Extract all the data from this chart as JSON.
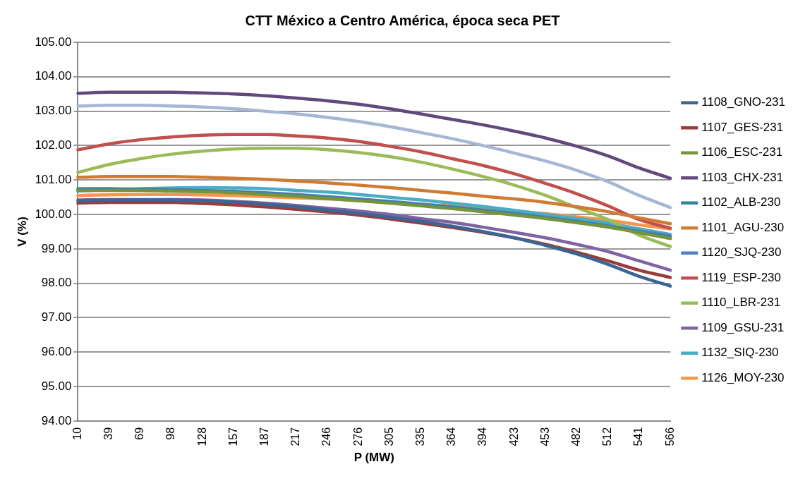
{
  "chart_data": {
    "type": "line",
    "title": "CTT México a Centro América, época seca PET",
    "xlabel": "P (MW)",
    "ylabel": "V (%)",
    "categories": [
      "10",
      "39",
      "69",
      "98",
      "128",
      "157",
      "187",
      "217",
      "246",
      "276",
      "305",
      "335",
      "364",
      "394",
      "423",
      "453",
      "482",
      "512",
      "541",
      "566"
    ],
    "ylim": [
      94,
      105
    ],
    "yticks": [
      {
        "value": 94,
        "label": "94.00"
      },
      {
        "value": 95,
        "label": "95.00"
      },
      {
        "value": 96,
        "label": "96.00"
      },
      {
        "value": 97,
        "label": "97.00"
      },
      {
        "value": 98,
        "label": "98.00"
      },
      {
        "value": 99,
        "label": "99.00"
      },
      {
        "value": 100,
        "label": "100.00"
      },
      {
        "value": 101,
        "label": "101.00"
      },
      {
        "value": 102,
        "label": "102.00"
      },
      {
        "value": 103,
        "label": "103.00"
      },
      {
        "value": 104,
        "label": "104.00"
      },
      {
        "value": 105,
        "label": "105.00"
      }
    ],
    "grid": "y",
    "legend": "right",
    "marker": "none",
    "line_style": "solid",
    "series": [
      {
        "name": "1108_GNO-231",
        "color": "#3a6594",
        "values": [
          100.4,
          100.42,
          100.42,
          100.42,
          100.4,
          100.36,
          100.3,
          100.22,
          100.13,
          100.03,
          99.92,
          99.8,
          99.66,
          99.5,
          99.32,
          99.1,
          98.85,
          98.55,
          98.2,
          97.92
        ]
      },
      {
        "name": "1107_GES-231",
        "color": "#9b3b3a",
        "values": [
          100.33,
          100.35,
          100.35,
          100.35,
          100.32,
          100.28,
          100.22,
          100.15,
          100.07,
          99.98,
          99.87,
          99.75,
          99.62,
          99.48,
          99.32,
          99.13,
          98.9,
          98.65,
          98.38,
          98.17
        ]
      },
      {
        "name": "1106_ESC-231",
        "color": "#77933c",
        "values": [
          100.7,
          100.7,
          100.7,
          100.68,
          100.66,
          100.63,
          100.58,
          100.53,
          100.46,
          100.4,
          100.33,
          100.25,
          100.17,
          100.08,
          99.98,
          99.88,
          99.76,
          99.63,
          99.47,
          99.3
        ]
      },
      {
        "name": "1103_CHX-231",
        "color": "#604a7b",
        "values": [
          103.52,
          103.55,
          103.55,
          103.55,
          103.53,
          103.5,
          103.45,
          103.38,
          103.3,
          103.2,
          103.07,
          102.92,
          102.76,
          102.6,
          102.42,
          102.22,
          101.98,
          101.7,
          101.35,
          101.05
        ]
      },
      {
        "name": "1102_ALB-230",
        "color": "#31859c",
        "values": [
          100.72,
          100.73,
          100.72,
          100.7,
          100.68,
          100.65,
          100.6,
          100.55,
          100.48,
          100.42,
          100.35,
          100.27,
          100.2,
          100.1,
          100.0,
          99.9,
          99.78,
          99.65,
          99.48,
          99.33
        ]
      },
      {
        "name": "1101_AGU-230",
        "color": "#d07a32",
        "values": [
          101.08,
          101.1,
          101.1,
          101.1,
          101.08,
          101.05,
          101.02,
          100.97,
          100.92,
          100.85,
          100.78,
          100.7,
          100.62,
          100.53,
          100.45,
          100.35,
          100.22,
          100.08,
          99.9,
          99.73
        ]
      },
      {
        "name": "1120_SJQ-230",
        "color": "#4f81bd",
        "values": [
          100.75,
          100.75,
          100.73,
          100.72,
          100.7,
          100.67,
          100.63,
          100.58,
          100.52,
          100.45,
          100.38,
          100.3,
          100.22,
          100.13,
          100.03,
          99.92,
          99.8,
          99.67,
          99.52,
          99.38
        ]
      },
      {
        "name": "1119_ESP-230",
        "color": "#c0504d",
        "values": [
          101.88,
          102.05,
          102.17,
          102.25,
          102.3,
          102.32,
          102.32,
          102.28,
          102.22,
          102.12,
          101.98,
          101.82,
          101.62,
          101.42,
          101.18,
          100.9,
          100.6,
          100.25,
          99.85,
          99.6
        ]
      },
      {
        "name": "1110_LBR-231",
        "color": "#9bbb59",
        "values": [
          101.22,
          101.45,
          101.62,
          101.75,
          101.84,
          101.9,
          101.92,
          101.92,
          101.88,
          101.8,
          101.68,
          101.52,
          101.32,
          101.1,
          100.85,
          100.55,
          100.2,
          99.85,
          99.4,
          99.07
        ]
      },
      {
        "name": "1109_GSU-231",
        "color": "#8064a2",
        "values": [
          100.42,
          100.43,
          100.43,
          100.43,
          100.42,
          100.38,
          100.33,
          100.26,
          100.18,
          100.1,
          100.0,
          99.88,
          99.77,
          99.63,
          99.48,
          99.32,
          99.13,
          98.92,
          98.65,
          98.38
        ]
      },
      {
        "name": "1132_SIQ-230",
        "color": "#4bacc6",
        "values": [
          100.68,
          100.72,
          100.75,
          100.77,
          100.78,
          100.77,
          100.75,
          100.7,
          100.65,
          100.58,
          100.5,
          100.42,
          100.33,
          100.23,
          100.12,
          100.0,
          99.88,
          99.75,
          99.58,
          99.42
        ]
      },
      {
        "name": "1126_MOY-230",
        "color": "#f79646",
        "values": [
          100.55,
          100.57,
          100.58,
          100.58,
          100.57,
          100.55,
          100.52,
          100.48,
          100.45,
          100.4,
          100.35,
          100.3,
          100.24,
          100.18,
          100.1,
          100.02,
          99.93,
          99.83,
          99.7,
          99.58
        ]
      },
      {
        "color": "#a5b7d4",
        "values": [
          103.15,
          103.17,
          103.17,
          103.15,
          103.12,
          103.07,
          103.0,
          102.92,
          102.82,
          102.7,
          102.55,
          102.38,
          102.2,
          102.0,
          101.78,
          101.55,
          101.28,
          100.95,
          100.55,
          100.2
        ]
      }
    ]
  }
}
